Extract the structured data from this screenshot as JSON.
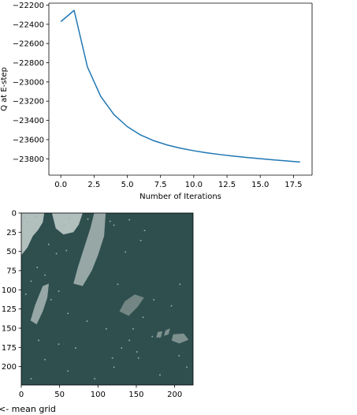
{
  "chart_data": [
    {
      "type": "line",
      "title": "",
      "xlabel": "Number of Iterations",
      "ylabel": "Q at E-step",
      "xlim": [
        -0.9,
        18.9
      ],
      "ylim": [
        -23970,
        -22180
      ],
      "xticks": [
        0.0,
        2.5,
        5.0,
        7.5,
        10.0,
        12.5,
        15.0,
        17.5
      ],
      "xtick_labels": [
        "0.0",
        "2.5",
        "5.0",
        "7.5",
        "10.0",
        "12.5",
        "15.0",
        "17.5"
      ],
      "yticks": [
        -22200,
        -22400,
        -22600,
        -22800,
        -23000,
        -23200,
        -23400,
        -23600,
        -23800
      ],
      "ytick_labels": [
        "−22200",
        "−22400",
        "−22600",
        "−22800",
        "−23000",
        "−23200",
        "−23400",
        "−23600",
        "−23800"
      ],
      "grid": false,
      "line_color": "#1f77b4",
      "x": [
        0,
        1,
        2,
        3,
        4,
        5,
        6,
        7,
        8,
        9,
        10,
        11,
        12,
        13,
        14,
        15,
        16,
        17,
        18
      ],
      "y": [
        -22372,
        -22255,
        -22843,
        -23150,
        -23340,
        -23465,
        -23552,
        -23612,
        -23656,
        -23690,
        -23716,
        -23738,
        -23756,
        -23772,
        -23786,
        -23799,
        -23811,
        -23822,
        -23833
      ]
    },
    {
      "type": "heatmap",
      "title": "",
      "xlim": [
        0,
        224
      ],
      "ylim": [
        224,
        0
      ],
      "xticks": [
        0,
        50,
        100,
        150,
        200
      ],
      "xtick_labels": [
        "0",
        "50",
        "100",
        "150",
        "200"
      ],
      "yticks": [
        0,
        25,
        50,
        75,
        100,
        125,
        150,
        175,
        200
      ],
      "ytick_labels": [
        "0",
        "25",
        "50",
        "75",
        "100",
        "125",
        "150",
        "175",
        "200"
      ],
      "background_color": "#2f4f4f",
      "patches": [
        {
          "color": "#c8d2d0",
          "points": [
            [
              0,
              0
            ],
            [
              30,
              0
            ],
            [
              28,
              12
            ],
            [
              22,
              22
            ],
            [
              15,
              30
            ],
            [
              8,
              45
            ],
            [
              0,
              55
            ]
          ]
        },
        {
          "color": "#c8d2d0",
          "points": [
            [
              40,
              0
            ],
            [
              80,
              0
            ],
            [
              75,
              15
            ],
            [
              68,
              25
            ],
            [
              55,
              28
            ],
            [
              45,
              20
            ]
          ]
        },
        {
          "color": "#a8b6b4",
          "points": [
            [
              95,
              0
            ],
            [
              110,
              0
            ],
            [
              108,
              30
            ],
            [
              100,
              55
            ],
            [
              92,
              75
            ],
            [
              80,
              95
            ],
            [
              68,
              92
            ],
            [
              74,
              70
            ],
            [
              82,
              45
            ],
            [
              90,
              20
            ]
          ]
        },
        {
          "color": "#a8b6b4",
          "points": [
            [
              28,
              95
            ],
            [
              36,
              92
            ],
            [
              34,
              110
            ],
            [
              28,
              128
            ],
            [
              20,
              145
            ],
            [
              12,
              140
            ],
            [
              18,
              120
            ]
          ]
        },
        {
          "color": "#7f8f8d",
          "points": [
            [
              135,
              115
            ],
            [
              148,
              106
            ],
            [
              160,
              110
            ],
            [
              152,
              122
            ],
            [
              140,
              134
            ],
            [
              128,
              128
            ]
          ]
        },
        {
          "color": "#8c9c9a",
          "points": [
            [
              198,
              158
            ],
            [
              212,
              157
            ],
            [
              218,
              165
            ],
            [
              206,
              170
            ],
            [
              196,
              166
            ]
          ]
        },
        {
          "color": "#8c9c9a",
          "points": [
            [
              188,
              153
            ],
            [
              194,
              150
            ],
            [
              192,
              158
            ],
            [
              186,
              160
            ]
          ]
        },
        {
          "color": "#8c9c9a",
          "points": [
            [
              178,
              155
            ],
            [
              184,
              154
            ],
            [
              182,
              162
            ],
            [
              176,
              162
            ]
          ]
        }
      ],
      "specks": [
        [
          3,
          5
        ],
        [
          7,
          11
        ],
        [
          18,
          4
        ],
        [
          42,
          8
        ],
        [
          55,
          15
        ],
        [
          62,
          6
        ],
        [
          74,
          12
        ],
        [
          86,
          7
        ],
        [
          104,
          22
        ],
        [
          115,
          10
        ],
        [
          35,
          40
        ],
        [
          45,
          52
        ],
        [
          58,
          48
        ],
        [
          20,
          70
        ],
        [
          12,
          88
        ],
        [
          30,
          80
        ],
        [
          5,
          105
        ],
        [
          38,
          112
        ],
        [
          48,
          101
        ],
        [
          120,
          15
        ],
        [
          140,
          8
        ],
        [
          155,
          35
        ],
        [
          160,
          22
        ],
        [
          135,
          50
        ],
        [
          125,
          92
        ],
        [
          158,
          135
        ],
        [
          170,
          160
        ],
        [
          150,
          180
        ],
        [
          120,
          200
        ],
        [
          95,
          215
        ],
        [
          60,
          205
        ],
        [
          30,
          190
        ],
        [
          12,
          215
        ],
        [
          205,
          185
        ],
        [
          215,
          200
        ],
        [
          180,
          210
        ],
        [
          140,
          165
        ],
        [
          110,
          150
        ],
        [
          70,
          175
        ],
        [
          195,
          120
        ],
        [
          60,
          130
        ],
        [
          85,
          140
        ],
        [
          130,
          175
        ],
        [
          172,
          112
        ],
        [
          206,
          92
        ],
        [
          152,
          188
        ],
        [
          48,
          170
        ],
        [
          22,
          165
        ],
        [
          118,
          188
        ],
        [
          145,
          150
        ]
      ],
      "speck_color": "#9fb0ae"
    }
  ],
  "footer_text": "<- mean grid"
}
